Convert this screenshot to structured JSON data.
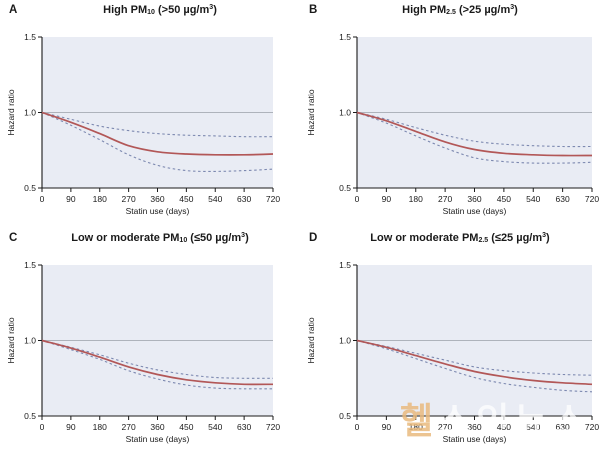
{
  "figure": {
    "panels": [
      {
        "label": "A",
        "title_pre": "High PM",
        "title_sub": "10",
        "title_mid": " (>50 µg/m",
        "title_sup": "3",
        "title_end": ")"
      },
      {
        "label": "B",
        "title_pre": "High PM",
        "title_sub": "2.5",
        "title_mid": " (>25 µg/m",
        "title_sup": "3",
        "title_end": ")"
      },
      {
        "label": "C",
        "title_pre": "Low or moderate PM",
        "title_sub": "10",
        "title_mid": " (≤50 µg/m",
        "title_sup": "3",
        "title_end": ")"
      },
      {
        "label": "D",
        "title_pre": "Low or moderate PM",
        "title_sub": "2.5",
        "title_mid": " (≤25 µg/m",
        "title_sup": "3",
        "title_end": ")"
      }
    ]
  },
  "watermark": {
    "first": "헬",
    "rest": "스인뉴스"
  },
  "colors": {
    "plot_background": "#e9ecf4",
    "point_estimate": "#b25757",
    "confidence_interval": "#7d89b0",
    "reference_line": "#9aa0a8",
    "axis": "#1a1a1a"
  },
  "chart_data": [
    {
      "type": "line",
      "panel": "A",
      "title": "High PM10 (>50 µg/m³)",
      "xlabel": "Statin use (days)",
      "ylabel": "Hazard ratio",
      "xlim": [
        0,
        720
      ],
      "ylim": [
        0.5,
        1.5
      ],
      "xticks": [
        0,
        90,
        180,
        270,
        360,
        450,
        540,
        630,
        720
      ],
      "yticks": [
        0.5,
        1.0,
        1.5
      ],
      "reference_line": 1.0,
      "legend": "none",
      "grid": false,
      "x": [
        0,
        90,
        180,
        270,
        360,
        450,
        540,
        630,
        720
      ],
      "series": [
        {
          "key": "point_estimate",
          "name": "Hazard ratio (point estimate)",
          "style": "solid",
          "color": "#b25757",
          "values": [
            1.0,
            0.935,
            0.86,
            0.78,
            0.74,
            0.725,
            0.72,
            0.72,
            0.725
          ]
        },
        {
          "key": "upper_ci",
          "name": "Upper 95% CI",
          "style": "dashed",
          "color": "#7d89b0",
          "values": [
            1.0,
            0.955,
            0.91,
            0.88,
            0.86,
            0.85,
            0.845,
            0.84,
            0.84
          ]
        },
        {
          "key": "lower_ci",
          "name": "Lower 95% CI",
          "style": "dashed",
          "color": "#7d89b0",
          "values": [
            1.0,
            0.915,
            0.82,
            0.72,
            0.65,
            0.615,
            0.61,
            0.615,
            0.625
          ]
        }
      ]
    },
    {
      "type": "line",
      "panel": "B",
      "title": "High PM2.5 (>25 µg/m³)",
      "xlabel": "Statin use (days)",
      "ylabel": "Hazard ratio",
      "xlim": [
        0,
        720
      ],
      "ylim": [
        0.5,
        1.5
      ],
      "xticks": [
        0,
        90,
        180,
        270,
        360,
        450,
        540,
        630,
        720
      ],
      "yticks": [
        0.5,
        1.0,
        1.5
      ],
      "reference_line": 1.0,
      "legend": "none",
      "grid": false,
      "x": [
        0,
        90,
        180,
        270,
        360,
        450,
        540,
        630,
        720
      ],
      "series": [
        {
          "key": "point_estimate",
          "name": "Hazard ratio (point estimate)",
          "style": "solid",
          "color": "#b25757",
          "values": [
            1.0,
            0.945,
            0.875,
            0.805,
            0.755,
            0.73,
            0.72,
            0.715,
            0.715
          ]
        },
        {
          "key": "upper_ci",
          "name": "Upper 95% CI",
          "style": "dashed",
          "color": "#7d89b0",
          "values": [
            1.0,
            0.955,
            0.9,
            0.85,
            0.81,
            0.79,
            0.78,
            0.775,
            0.775
          ]
        },
        {
          "key": "lower_ci",
          "name": "Lower 95% CI",
          "style": "dashed",
          "color": "#7d89b0",
          "values": [
            1.0,
            0.93,
            0.845,
            0.765,
            0.7,
            0.675,
            0.665,
            0.665,
            0.67
          ]
        }
      ]
    },
    {
      "type": "line",
      "panel": "C",
      "title": "Low or moderate PM10 (≤50 µg/m³)",
      "xlabel": "Statin use (days)",
      "ylabel": "Hazard ratio",
      "xlim": [
        0,
        720
      ],
      "ylim": [
        0.5,
        1.5
      ],
      "xticks": [
        0,
        90,
        180,
        270,
        360,
        450,
        540,
        630,
        720
      ],
      "yticks": [
        0.5,
        1.0,
        1.5
      ],
      "reference_line": 1.0,
      "legend": "none",
      "grid": false,
      "x": [
        0,
        90,
        180,
        270,
        360,
        450,
        540,
        630,
        720
      ],
      "series": [
        {
          "key": "point_estimate",
          "name": "Hazard ratio (point estimate)",
          "style": "solid",
          "color": "#b25757",
          "values": [
            1.0,
            0.95,
            0.89,
            0.825,
            0.775,
            0.74,
            0.72,
            0.71,
            0.71
          ]
        },
        {
          "key": "upper_ci",
          "name": "Upper 95% CI",
          "style": "dashed",
          "color": "#7d89b0",
          "values": [
            1.0,
            0.955,
            0.905,
            0.85,
            0.805,
            0.775,
            0.755,
            0.75,
            0.75
          ]
        },
        {
          "key": "lower_ci",
          "name": "Lower 95% CI",
          "style": "dashed",
          "color": "#7d89b0",
          "values": [
            1.0,
            0.94,
            0.875,
            0.8,
            0.745,
            0.705,
            0.685,
            0.68,
            0.68
          ]
        }
      ]
    },
    {
      "type": "line",
      "panel": "D",
      "title": "Low or moderate PM2.5 (≤25 µg/m³)",
      "xlabel": "Statin use (days)",
      "ylabel": "Hazard ratio",
      "xlim": [
        0,
        720
      ],
      "ylim": [
        0.5,
        1.5
      ],
      "xticks": [
        0,
        90,
        180,
        270,
        360,
        450,
        540,
        630,
        720
      ],
      "yticks": [
        0.5,
        1.0,
        1.5
      ],
      "reference_line": 1.0,
      "legend": "none",
      "grid": false,
      "x": [
        0,
        90,
        180,
        270,
        360,
        450,
        540,
        630,
        720
      ],
      "series": [
        {
          "key": "point_estimate",
          "name": "Hazard ratio (point estimate)",
          "style": "solid",
          "color": "#b25757",
          "values": [
            1.0,
            0.955,
            0.9,
            0.845,
            0.795,
            0.76,
            0.735,
            0.72,
            0.71
          ]
        },
        {
          "key": "upper_ci",
          "name": "Upper 95% CI",
          "style": "dashed",
          "color": "#7d89b0",
          "values": [
            1.0,
            0.96,
            0.915,
            0.87,
            0.825,
            0.8,
            0.785,
            0.775,
            0.77
          ]
        },
        {
          "key": "lower_ci",
          "name": "Lower 95% CI",
          "style": "dashed",
          "color": "#7d89b0",
          "values": [
            1.0,
            0.945,
            0.88,
            0.815,
            0.755,
            0.715,
            0.69,
            0.67,
            0.66
          ]
        }
      ]
    }
  ]
}
